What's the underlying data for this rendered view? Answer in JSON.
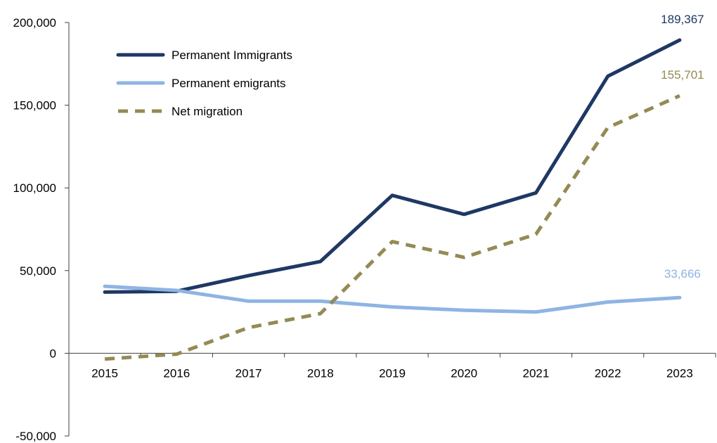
{
  "chart_data": {
    "type": "line",
    "title": "",
    "xlabel": "",
    "ylabel": "",
    "categories": [
      "2015",
      "2016",
      "2017",
      "2018",
      "2019",
      "2020",
      "2021",
      "2022",
      "2023"
    ],
    "ylim": [
      -50000,
      200000
    ],
    "yticks": [
      -50000,
      0,
      50000,
      100000,
      150000,
      200000
    ],
    "ytick_labels": [
      "-50,000",
      "0",
      "50,000",
      "100,000",
      "150,000",
      "200,000"
    ],
    "grid": false,
    "legend_position": "top-left",
    "series": [
      {
        "name": "Permanent Immigrants",
        "color": "#1f3864",
        "style": "solid",
        "values": [
          37000,
          37500,
          47000,
          55500,
          95500,
          84000,
          97000,
          167500,
          189367
        ],
        "end_label": "189,367"
      },
      {
        "name": "Permanent emigrants",
        "color": "#8eb4e3",
        "style": "solid",
        "values": [
          40500,
          38000,
          31500,
          31500,
          28000,
          26000,
          25000,
          31000,
          33666
        ],
        "end_label": "33,666"
      },
      {
        "name": "Net migration",
        "color": "#948a54",
        "style": "dashed",
        "values": [
          -3500,
          -500,
          15500,
          24000,
          67500,
          58000,
          72000,
          136500,
          155701
        ],
        "end_label": "155,701"
      }
    ]
  }
}
